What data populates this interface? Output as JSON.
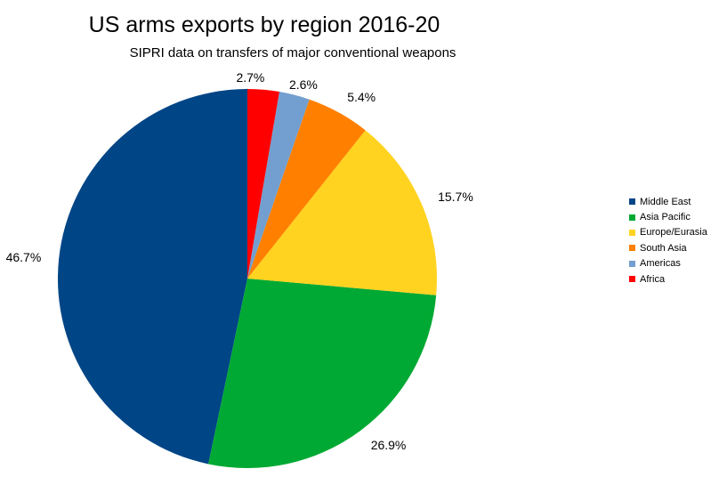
{
  "chart_data": {
    "type": "pie",
    "title": "US arms exports by region 2016-20",
    "subtitle": "SIPRI data on transfers of major conventional weapons",
    "slices": [
      {
        "label": "Middle East",
        "value": 46.7,
        "value_label": "46.7%",
        "color": "#004586"
      },
      {
        "label": "Asia Pacific",
        "value": 26.9,
        "value_label": "26.9%",
        "color": "#00a933"
      },
      {
        "label": "Europe/Eurasia",
        "value": 15.7,
        "value_label": "15.7%",
        "color": "#ffd320"
      },
      {
        "label": "South Asia",
        "value": 5.4,
        "value_label": "5.4%",
        "color": "#ff8000"
      },
      {
        "label": "Americas",
        "value": 2.6,
        "value_label": "2.6%",
        "color": "#729fcf"
      },
      {
        "label": "Africa",
        "value": 2.7,
        "value_label": "2.7%",
        "color": "#ff0000"
      }
    ],
    "start_angle": "12 o'clock",
    "direction": "counterclockwise from Middle East",
    "legend_position": "right"
  }
}
